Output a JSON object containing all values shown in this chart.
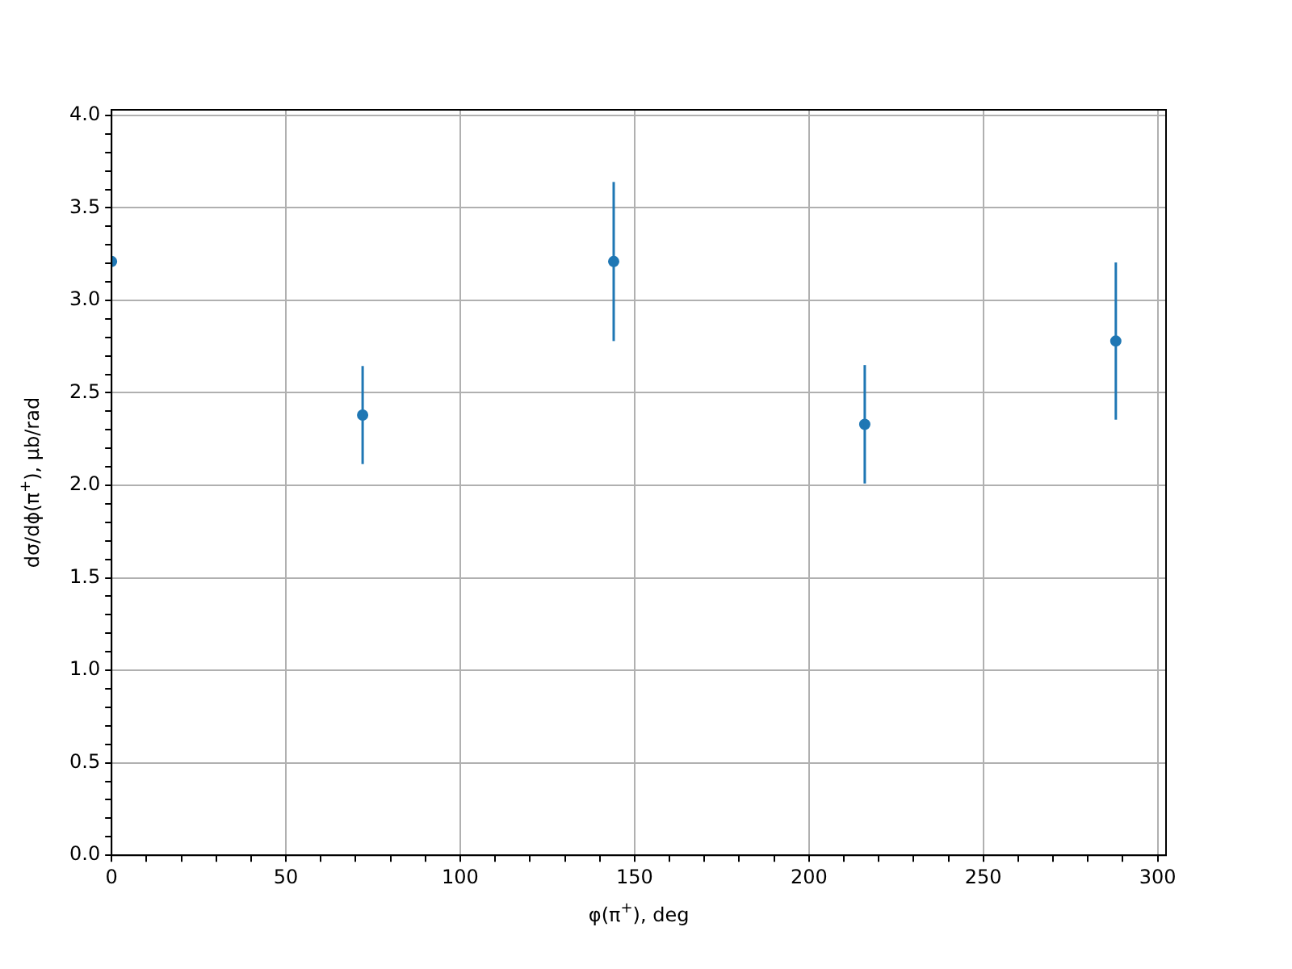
{
  "chart_data": {
    "type": "scatter",
    "xlabel": "φ(π$^{+}$), deg",
    "ylabel": "dσ/dϕ(π$^{+}$), μb/rad",
    "x": [
      0,
      72,
      144,
      216,
      288
    ],
    "series": [
      {
        "color": "#1f77b4",
        "values": [
          3.21,
          2.38,
          3.21,
          2.33,
          2.78
        ],
        "errors": [
          null,
          0.265,
          0.43,
          0.32,
          0.425
        ]
      }
    ],
    "marker": "circle",
    "grid": true,
    "xlim": [
      0,
      302.4
    ],
    "ylim": [
      0,
      4.03
    ],
    "xticks": [
      0,
      {
        "value": 10,
        "label": null
      },
      {
        "value": 20,
        "label": null
      },
      {
        "value": 30,
        "label": null
      },
      {
        "value": 40,
        "label": null
      },
      50,
      {
        "value": 60,
        "label": null
      },
      {
        "value": 70,
        "label": null
      },
      {
        "value": 80,
        "label": null
      },
      {
        "value": 90,
        "label": null
      },
      100,
      {
        "value": 110,
        "label": null
      },
      {
        "value": 120,
        "label": null
      },
      {
        "value": 130,
        "label": null
      },
      {
        "value": 140,
        "label": null
      },
      150,
      {
        "value": 160,
        "label": null
      },
      {
        "value": 170,
        "label": null
      },
      {
        "value": 180,
        "label": null
      },
      {
        "value": 190,
        "label": null
      },
      200,
      {
        "value": 210,
        "label": null
      },
      {
        "value": 220,
        "label": null
      },
      {
        "value": 230,
        "label": null
      },
      {
        "value": 240,
        "label": null
      },
      250,
      {
        "value": 260,
        "label": null
      },
      {
        "value": 270,
        "label": null
      },
      {
        "value": 280,
        "label": null
      },
      {
        "value": 290,
        "label": null
      },
      300
    ],
    "yticks": [
      {
        "value": 0,
        "label": "0.0"
      },
      {
        "value": 0.1,
        "label": null
      },
      {
        "value": 0.2,
        "label": null
      },
      {
        "value": 0.3,
        "label": null
      },
      {
        "value": 0.4,
        "label": null
      },
      0.5,
      {
        "value": 0.6,
        "label": null
      },
      {
        "value": 0.7,
        "label": null
      },
      {
        "value": 0.8,
        "label": null
      },
      {
        "value": 0.9,
        "label": null
      },
      {
        "value": 1,
        "label": "1.0"
      },
      {
        "value": 1.1,
        "label": null
      },
      {
        "value": 1.2,
        "label": null
      },
      {
        "value": 1.3,
        "label": null
      },
      {
        "value": 1.4,
        "label": null
      },
      1.5,
      {
        "value": 1.6,
        "label": null
      },
      {
        "value": 1.7,
        "label": null
      },
      {
        "value": 1.8,
        "label": null
      },
      {
        "value": 1.9,
        "label": null
      },
      {
        "value": 2,
        "label": "2.0"
      },
      {
        "value": 2.1,
        "label": null
      },
      {
        "value": 2.2,
        "label": null
      },
      {
        "value": 2.3,
        "label": null
      },
      {
        "value": 2.4,
        "label": null
      },
      2.5,
      {
        "value": 2.6,
        "label": null
      },
      {
        "value": 2.7,
        "label": null
      },
      {
        "value": 2.8,
        "label": null
      },
      {
        "value": 2.9,
        "label": null
      },
      {
        "value": 3,
        "label": "3.0"
      },
      {
        "value": 3.1,
        "label": null
      },
      {
        "value": 3.2,
        "label": null
      },
      {
        "value": 3.3,
        "label": null
      },
      {
        "value": 3.4,
        "label": null
      },
      3.5,
      {
        "value": 3.6,
        "label": null
      },
      {
        "value": 3.7,
        "label": null
      },
      {
        "value": 3.8,
        "label": null
      },
      {
        "value": 3.9,
        "label": null
      },
      {
        "value": 4,
        "label": "4.0"
      }
    ]
  }
}
